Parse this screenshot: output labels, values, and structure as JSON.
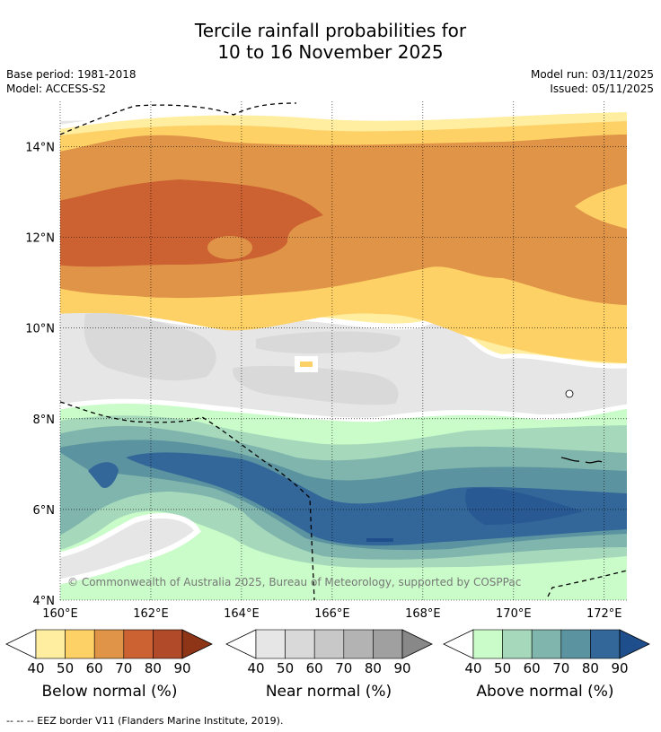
{
  "title": {
    "line1": "Tercile rainfall probabilities for",
    "line2": "10 to 16 November 2025"
  },
  "meta": {
    "base_period": "Base period: 1981-2018",
    "model": "Model: ACCESS-S2",
    "model_run": "Model run: 03/11/2025",
    "issued": "Issued: 05/11/2025"
  },
  "map": {
    "lat_labels": [
      "14°N",
      "12°N",
      "10°N",
      "8°N",
      "6°N",
      "4°N"
    ],
    "lat_values": [
      14,
      12,
      10,
      8,
      6,
      4
    ],
    "lon_labels": [
      "160°E",
      "162°E",
      "164°E",
      "166°E",
      "168°E",
      "170°E",
      "172°E"
    ],
    "lon_values": [
      160,
      162,
      164,
      166,
      168,
      170,
      172
    ],
    "lat_range": [
      4,
      15
    ],
    "lon_range": [
      160,
      172.5
    ],
    "copyright": "© Commonwealth of Australia 2025, Bureau of Meteorology, supported by COSPPac"
  },
  "colorbars": [
    {
      "label": "Below normal (%)",
      "ticks": [
        "40",
        "50",
        "60",
        "70",
        "80",
        "90"
      ],
      "colors": [
        "#ffeda0",
        "#fed166",
        "#e09448",
        "#cc6232",
        "#b04a28",
        "#8e3518"
      ]
    },
    {
      "label": "Near normal (%)",
      "ticks": [
        "40",
        "50",
        "60",
        "70",
        "80",
        "90"
      ],
      "colors": [
        "#e6e6e6",
        "#d9d9d9",
        "#c8c8c8",
        "#b3b3b3",
        "#a0a0a0",
        "#888888"
      ]
    },
    {
      "label": "Above normal (%)",
      "ticks": [
        "40",
        "50",
        "60",
        "70",
        "80",
        "90"
      ],
      "colors": [
        "#c9fcc8",
        "#a6d8bb",
        "#7fb5ac",
        "#5b93a0",
        "#336799",
        "#1f4e8c"
      ]
    }
  ],
  "footer": "--  --  -- EEZ border V11 (Flanders Marine Institute, 2019)."
}
